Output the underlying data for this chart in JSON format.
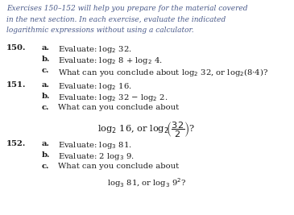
{
  "bg_color": "#ffffff",
  "italic_color": "#4a5a8a",
  "black": "#1a1a1a",
  "figsize": [
    3.65,
    2.67
  ],
  "dpi": 100,
  "fs_header": 6.5,
  "fs_body": 7.2,
  "header_lines": [
    "Exercises 150–152 will help you prepare for the material covered",
    "in the next section. In each exercise, evaluate the indicated",
    "logarithmic expressions without using a calculator."
  ]
}
